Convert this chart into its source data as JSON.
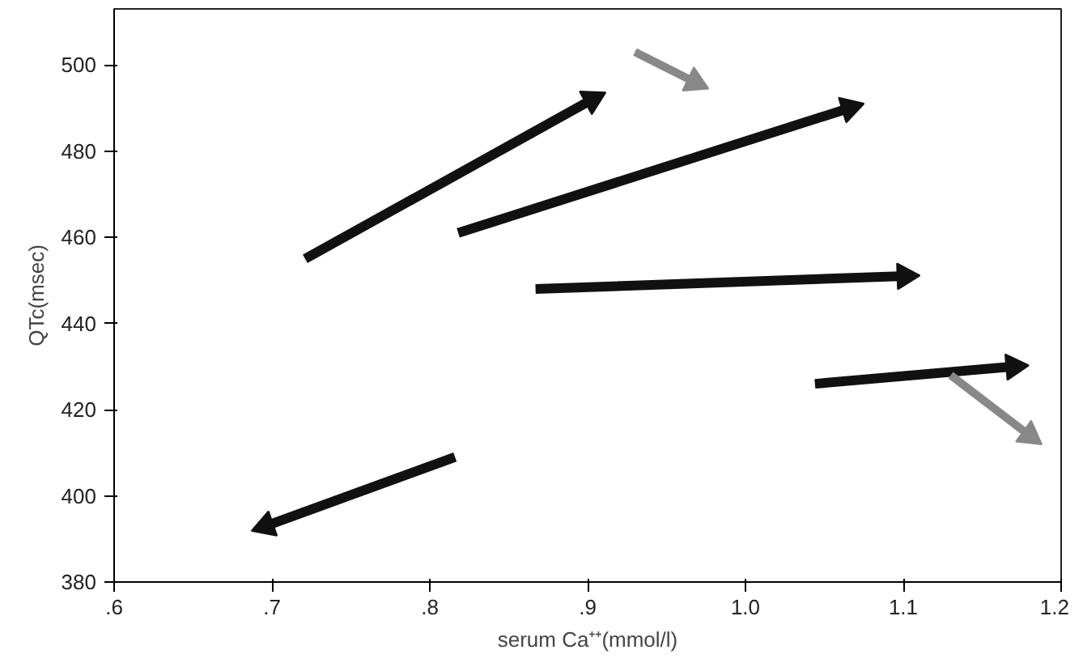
{
  "chart_data": {
    "type": "line",
    "xlabel": "serum Ca⁺⁺(mmol/l)",
    "ylabel": "QTc(msec)",
    "xlim": [
      0.6,
      1.2
    ],
    "ylim": [
      380,
      513
    ],
    "xticks": [
      {
        "value": 0.6,
        "label": ".6"
      },
      {
        "value": 0.7,
        "label": ".7"
      },
      {
        "value": 0.8,
        "label": ".8"
      },
      {
        "value": 0.9,
        "label": ".9"
      },
      {
        "value": 1.0,
        "label": "1.0"
      },
      {
        "value": 1.1,
        "label": "1.1"
      },
      {
        "value": 1.2,
        "label": "1.2"
      }
    ],
    "yticks": [
      380,
      400,
      420,
      440,
      460,
      480,
      500
    ],
    "grid": false,
    "marker": "triangle",
    "line_style": "solid",
    "series": [
      {
        "color": "#111111",
        "x": [
          0.721,
          0.903
        ],
        "values": [
          455,
          492
        ]
      },
      {
        "color": "#111111",
        "x": [
          0.818,
          1.066
        ],
        "values": [
          461,
          490
        ]
      },
      {
        "color": "#111111",
        "x": [
          0.867,
          1.101
        ],
        "values": [
          448,
          451
        ]
      },
      {
        "color": "#111111",
        "x": [
          1.044,
          1.17
        ],
        "values": [
          426,
          430
        ]
      },
      {
        "color": "#111111",
        "x": [
          0.816,
          0.696
        ],
        "values": [
          409,
          393
        ]
      },
      {
        "color": "#888888",
        "x": [
          0.93,
          0.968
        ],
        "values": [
          503,
          496
        ]
      },
      {
        "color": "#888888",
        "x": [
          1.13,
          1.18
        ],
        "values": [
          428,
          414
        ]
      }
    ]
  }
}
